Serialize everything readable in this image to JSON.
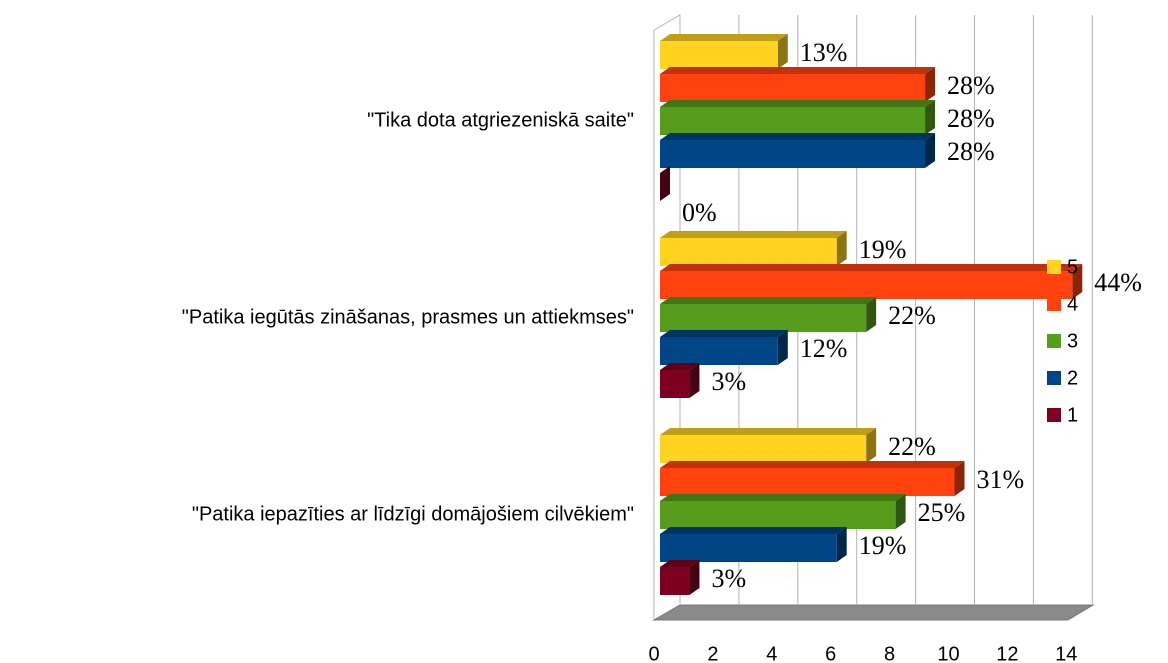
{
  "chart_data": {
    "type": "bar3d_horizontal",
    "categories": [
      "\"Tika dota atgriezeniskā saite\"",
      "\"Patika iegūtās zināšanas, prasmes un attiekmses\"",
      "\"Patika iepazīties ar līdzīgi domājošiem cilvēkiem\""
    ],
    "series": [
      {
        "name": "5",
        "color": "#ffd320",
        "values": [
          4,
          6,
          7
        ],
        "value_labels": [
          "13%",
          "19%",
          "22%"
        ]
      },
      {
        "name": "4",
        "color": "#ff420e",
        "values": [
          9,
          14,
          10
        ],
        "value_labels": [
          "28%",
          "44%",
          "31%"
        ]
      },
      {
        "name": "3",
        "color": "#579d1c",
        "values": [
          9,
          7,
          8
        ],
        "value_labels": [
          "28%",
          "22%",
          "25%"
        ]
      },
      {
        "name": "2",
        "color": "#004586",
        "values": [
          9,
          4,
          6
        ],
        "value_labels": [
          "28%",
          "12%",
          "19%"
        ]
      },
      {
        "name": "1",
        "color": "#7e0021",
        "values": [
          0,
          1,
          1
        ],
        "value_labels": [
          "0%",
          "3%",
          "3%"
        ]
      }
    ],
    "xlim": [
      0,
      14
    ],
    "xticks": [
      0,
      2,
      4,
      6,
      8,
      10,
      12,
      14
    ],
    "grid": true,
    "legend": "right"
  }
}
